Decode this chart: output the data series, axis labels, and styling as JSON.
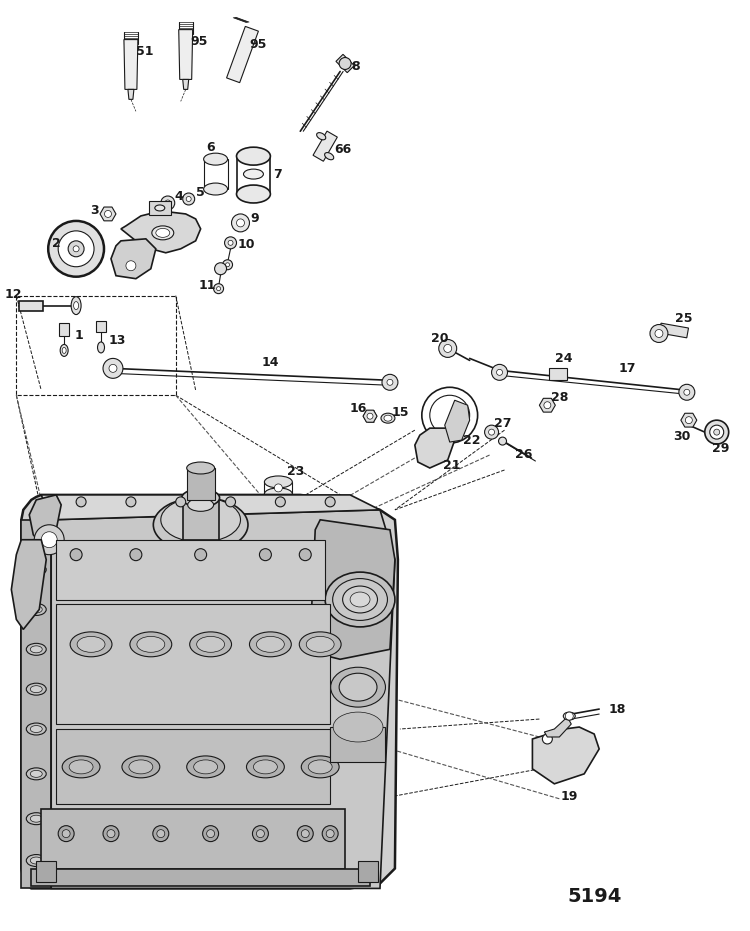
{
  "catalog_number": "5194",
  "bg_color": "#ffffff",
  "line_color": "#1a1a1a",
  "fig_width": 7.5,
  "fig_height": 9.31,
  "dpi": 100
}
